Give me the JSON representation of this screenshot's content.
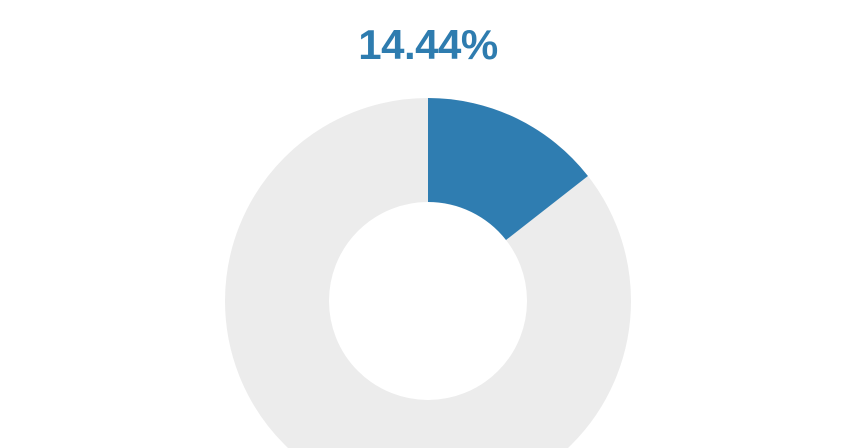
{
  "page": {
    "background_color": "#ffffff"
  },
  "chart_data": {
    "type": "pie",
    "subtype": "donut",
    "title": "14.44%",
    "title_color": "#2E7CAF",
    "slices": [
      {
        "label": "",
        "value": 14.44,
        "color": "#2F7DB1"
      },
      {
        "label": "",
        "value": 85.56,
        "color": "#ECECEC"
      }
    ],
    "start_angle_deg": 0,
    "direction": "clockwise",
    "inner_radius_ratio": 0.49,
    "legend": "none",
    "data_labels": "none",
    "notes": "single-value percentage donut; remainder ring light gray; bottom of donut clipped by canvas edge"
  }
}
